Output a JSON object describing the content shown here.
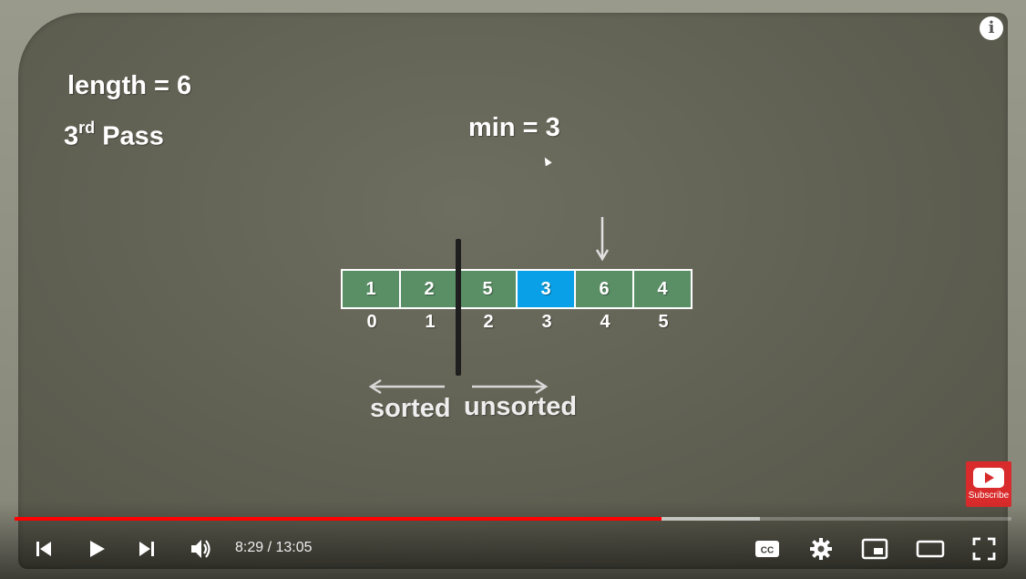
{
  "slide": {
    "length_text": "length = 6",
    "pass_number": "3",
    "pass_suffix": "rd",
    "pass_label": "Pass",
    "min_text": "min = 3",
    "array": [
      {
        "value": "1",
        "index": "0",
        "highlight": false
      },
      {
        "value": "2",
        "index": "1",
        "highlight": false
      },
      {
        "value": "5",
        "index": "2",
        "highlight": false
      },
      {
        "value": "3",
        "index": "3",
        "highlight": true
      },
      {
        "value": "6",
        "index": "4",
        "highlight": false
      },
      {
        "value": "4",
        "index": "5",
        "highlight": false
      }
    ],
    "sorted_label": "sorted",
    "unsorted_label": "unsorted"
  },
  "overlay": {
    "info_icon": "i",
    "subscribe_label": "Subscribe"
  },
  "player": {
    "time_display": "8:29 / 13:05",
    "played_fraction": 0.649,
    "buffered_fraction": 0.748,
    "icons": [
      "previous-icon",
      "play-icon",
      "next-icon",
      "volume-icon",
      "captions-icon",
      "settings-icon",
      "miniplayer-icon",
      "theater-icon",
      "fullscreen-icon"
    ],
    "colors": {
      "progress_played": "#ff0000",
      "cell_green": "#5a8f66",
      "cell_highlight": "#0aa0e8",
      "subscribe_red": "#d92b2b"
    }
  }
}
